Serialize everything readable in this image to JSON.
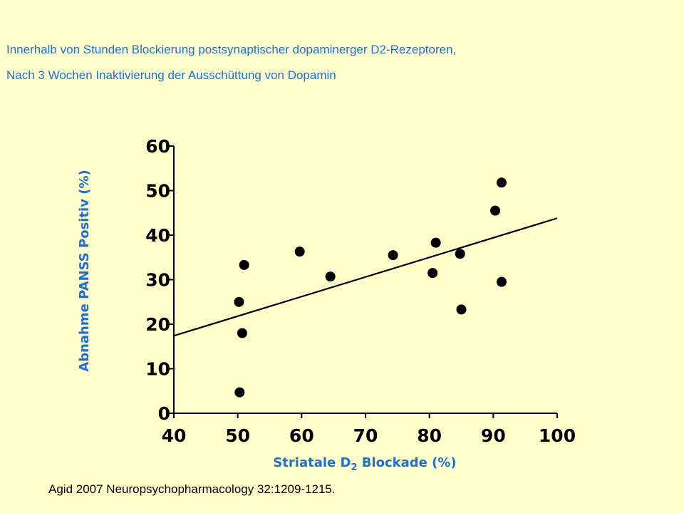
{
  "header": {
    "line1": "Innerhalb von Stunden Blockierung postsynaptischer dopaminerger D2-Rezeptoren,",
    "line2": "Nach 3 Wochen Inaktivierung der Ausschüttung von Dopamin"
  },
  "citation": "Agid  2007 Neuropsychopharmacology  32:1209-1215.",
  "colors": {
    "background": "#FFFFCC",
    "accent_text": "#1E6FD0",
    "points": "#000000"
  },
  "chart_data": {
    "type": "scatter",
    "xlabel_prefix": "Striatale D",
    "xlabel_sub": "2",
    "xlabel_suffix": " Blockade (%)",
    "ylabel_part1": "Abnahme ",
    "ylabel_part2": "PANSS Positiv (%)",
    "xlim": [
      40,
      100
    ],
    "ylim": [
      0,
      60
    ],
    "xticks": [
      40,
      50,
      60,
      70,
      80,
      90,
      100
    ],
    "yticks": [
      0,
      10,
      20,
      30,
      40,
      50,
      60
    ],
    "grid": false,
    "points": [
      {
        "x": 50.3,
        "y": 4.7
      },
      {
        "x": 50.7,
        "y": 18.0
      },
      {
        "x": 50.2,
        "y": 25.0
      },
      {
        "x": 51.0,
        "y": 33.3
      },
      {
        "x": 59.7,
        "y": 36.3
      },
      {
        "x": 64.5,
        "y": 30.7
      },
      {
        "x": 74.3,
        "y": 35.5
      },
      {
        "x": 80.5,
        "y": 31.5
      },
      {
        "x": 81.0,
        "y": 38.3
      },
      {
        "x": 84.8,
        "y": 35.8
      },
      {
        "x": 85.0,
        "y": 23.3
      },
      {
        "x": 90.3,
        "y": 45.5
      },
      {
        "x": 91.3,
        "y": 29.5
      },
      {
        "x": 91.3,
        "y": 51.8
      }
    ],
    "trendline": {
      "x": [
        40,
        100
      ],
      "y": [
        17.4,
        43.8
      ]
    }
  }
}
